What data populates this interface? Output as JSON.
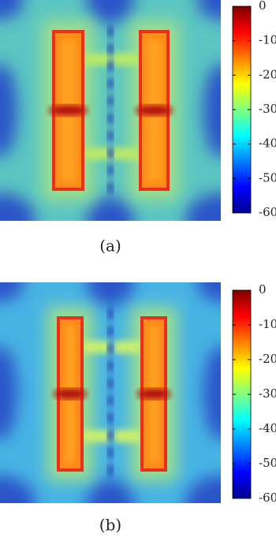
{
  "chart_data": [
    {
      "type": "heatmap",
      "caption": "(a)",
      "colormap": "jet",
      "colorbar": {
        "ylim": [
          -60,
          0
        ],
        "yticks": [
          0,
          -10,
          -20,
          -30,
          -40,
          -50,
          -60
        ]
      }
    },
    {
      "type": "heatmap",
      "caption": "(b)",
      "colormap": "jet",
      "colorbar": {
        "ylim": [
          -60,
          0
        ],
        "yticks": [
          0,
          -10,
          -20,
          -30,
          -40,
          -50,
          -60
        ]
      }
    }
  ]
}
